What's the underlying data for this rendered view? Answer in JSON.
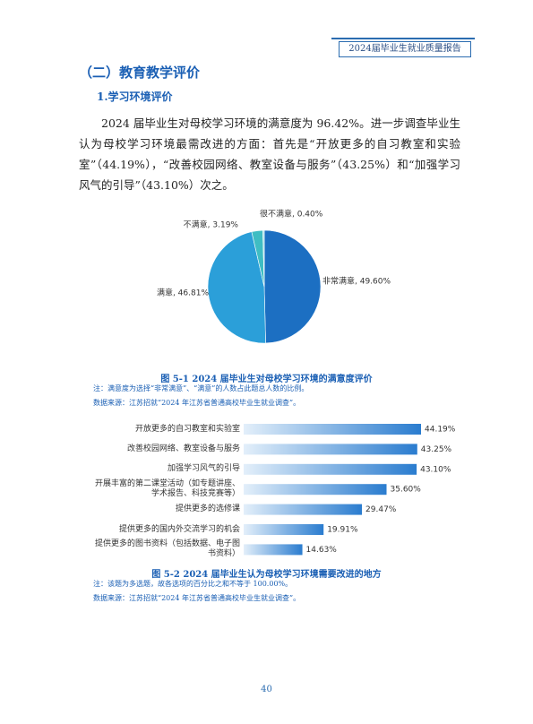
{
  "header": {
    "tag": "2024届毕业生就业质量报告"
  },
  "section_title": "（二）教育教学评价",
  "subsection_title": "1.学习环境评价",
  "paragraph": "2024 届毕业生对母校学习环境的满意度为 96.42%。进一步调查毕业生认为母校学习环境最需改进的方面：首先是“开放更多的自习教室和实验室”（44.19%），“改善校园网络、教室设备与服务”（43.25%）和“加强学习风气的引导”（43.10%）次之。",
  "chart_data": [
    {
      "type": "pie",
      "values": [
        49.6,
        46.81,
        3.19,
        0.4
      ],
      "value_labels": [
        "非常满意, 49.60%",
        "满意, 46.81%",
        "不满意, 3.19%",
        "很不满意, 0.40%"
      ],
      "colors": [
        "#1c6fc2",
        "#2b9fd9",
        "#3fbdc3",
        "#9adbe3"
      ],
      "caption": "图 5-1   2024 届毕业生对母校学习环境的满意度评价",
      "notes": [
        "注：满意度为选择“非常满意”、“满意”的人数占此题总人数的比例。",
        "数据来源：江苏招就“2024 年江苏省普通高校毕业生就业调查”。"
      ]
    },
    {
      "type": "bar",
      "orientation": "horizontal",
      "categories": [
        "开放更多的自习教室和实验室",
        "改善校园网络、教室设备与服务",
        "加强学习风气的引导",
        "开展丰富的第二课堂活动（如专题讲座、学术报告、科技竞赛等）",
        "提供更多的选修课",
        "提供更多的国内外交流学习的机会",
        "提供更多的图书资料（包括数据、电子图书资料）"
      ],
      "values": [
        44.19,
        43.25,
        43.1,
        35.6,
        29.47,
        19.91,
        14.63
      ],
      "value_labels": [
        "44.19%",
        "43.25%",
        "43.10%",
        "35.60%",
        "29.47%",
        "19.91%",
        "14.63%"
      ],
      "color": "#2a7ccf",
      "caption": "图 5-2   2024 届毕业生认为母校学习环境需要改进的地方",
      "notes": [
        "注：该题为多选题，故各选项的百分比之和不等于 100.00%。",
        "数据来源：江苏招就“2024 年江苏省普通高校毕业生就业调查”。"
      ]
    }
  ],
  "page_number": "40"
}
